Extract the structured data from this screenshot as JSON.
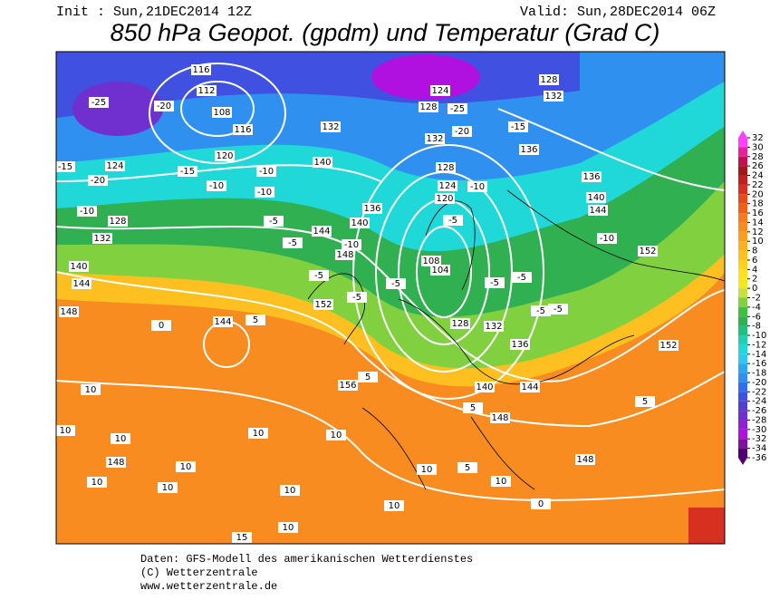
{
  "header": {
    "init": "Init : Sun,21DEC2014 12Z",
    "valid": "Valid: Sun,28DEC2014 06Z",
    "title": "850 hPa Geopot. (gpdm) und Temperatur (Grad C)"
  },
  "colorbar": {
    "ticks": [
      32,
      30,
      28,
      26,
      24,
      22,
      20,
      18,
      16,
      14,
      12,
      10,
      8,
      6,
      4,
      2,
      0,
      -2,
      -4,
      -6,
      -8,
      -10,
      -12,
      -14,
      -16,
      -18,
      -20,
      -22,
      -24,
      -26,
      -28,
      -30,
      -32,
      -34,
      -36
    ],
    "colors": [
      "#ff40ff",
      "#e8209a",
      "#c01050",
      "#a01818",
      "#c02020",
      "#d83020",
      "#e84a18",
      "#f06018",
      "#f57a20",
      "#f88c20",
      "#fa9e20",
      "#fcb020",
      "#fdc020",
      "#fed020",
      "#fee020",
      "#f0e820",
      "#c8e040",
      "#80d040",
      "#40c040",
      "#30b050",
      "#20c080",
      "#20d0b0",
      "#20d8d8",
      "#30c8f0",
      "#30a8f0",
      "#3090f0",
      "#3070f0",
      "#4050e0",
      "#5040d0",
      "#7030d0",
      "#9020d0",
      "#b010e0",
      "#8010a0",
      "#500070"
    ]
  },
  "map": {
    "geopotential_labels": [
      116,
      112,
      108,
      116,
      120,
      124,
      128,
      132,
      140,
      144,
      148,
      144,
      152,
      156,
      148,
      148,
      128,
      124,
      120,
      104,
      108,
      128,
      132,
      136,
      140,
      144,
      148,
      152,
      152,
      140,
      144,
      136,
      128,
      132,
      128,
      132,
      136,
      124,
      140,
      132,
      140,
      148,
      144,
      136
    ],
    "temperature_labels": [
      -25,
      -20,
      -15,
      -20,
      -10,
      -15,
      -10,
      -10,
      -10,
      -5,
      -5,
      -10,
      -5,
      -5,
      -5,
      -10,
      -5,
      -5,
      -5,
      -5,
      5,
      0,
      -5,
      -10,
      -20,
      -25,
      -15,
      5,
      5,
      5,
      5,
      10,
      10,
      10,
      10,
      10,
      10,
      10,
      10,
      10,
      10,
      15,
      10,
      10,
      10,
      0
    ]
  },
  "footer": {
    "lines": [
      "Daten: GFS-Modell des amerikanischen Wetterdienstes",
      "(C) Wetterzentrale",
      "www.wetterzentrale.de"
    ]
  }
}
